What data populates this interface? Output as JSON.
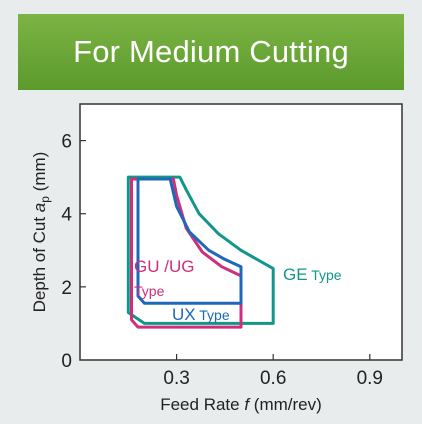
{
  "banner": {
    "title": "For Medium Cutting"
  },
  "chart_data": {
    "type": "area",
    "xlabel_main": "Feed Rate ",
    "xlabel_italic": "f",
    "xlabel_unit": " (mm/rev)",
    "ylabel_main": "Depth of Cut ",
    "ylabel_italic": "a",
    "ylabel_sub": "p",
    "ylabel_unit": " (mm)",
    "xlim": [
      0,
      1.0
    ],
    "ylim": [
      0,
      7
    ],
    "xticks": [
      {
        "v": 0.3,
        "label": "0.3"
      },
      {
        "v": 0.6,
        "label": "0.6"
      },
      {
        "v": 0.9,
        "label": "0.9"
      }
    ],
    "yticks": [
      {
        "v": 0,
        "label": "0"
      },
      {
        "v": 2,
        "label": "2"
      },
      {
        "v": 4,
        "label": "4"
      },
      {
        "v": 6,
        "label": "6"
      }
    ],
    "regions": [
      {
        "name_main": "GE",
        "name_suffix": " Type",
        "color": "#12968a",
        "outline": [
          [
            0.15,
            5.0
          ],
          [
            0.31,
            5.0
          ],
          [
            0.33,
            4.65
          ],
          [
            0.37,
            4.0
          ],
          [
            0.43,
            3.45
          ],
          [
            0.5,
            3.0
          ],
          [
            0.6,
            2.5
          ],
          [
            0.6,
            1.0
          ],
          [
            0.2,
            1.0
          ],
          [
            0.15,
            1.3
          ]
        ]
      },
      {
        "name_main": "GU /UG",
        "name_suffix": "Type",
        "color": "#cf2f7a",
        "outline": [
          [
            0.16,
            4.95
          ],
          [
            0.29,
            4.95
          ],
          [
            0.3,
            4.5
          ],
          [
            0.33,
            3.6
          ],
          [
            0.38,
            2.95
          ],
          [
            0.44,
            2.55
          ],
          [
            0.5,
            2.3
          ],
          [
            0.5,
            0.9
          ],
          [
            0.18,
            0.9
          ],
          [
            0.16,
            1.1
          ]
        ]
      },
      {
        "name_main": "UX",
        "name_suffix": " Type",
        "color": "#1d68b8",
        "outline": [
          [
            0.18,
            4.95
          ],
          [
            0.28,
            4.95
          ],
          [
            0.3,
            4.2
          ],
          [
            0.34,
            3.5
          ],
          [
            0.4,
            3.0
          ],
          [
            0.45,
            2.75
          ],
          [
            0.5,
            2.55
          ],
          [
            0.5,
            1.55
          ],
          [
            0.2,
            1.55
          ],
          [
            0.18,
            1.75
          ]
        ]
      }
    ]
  }
}
